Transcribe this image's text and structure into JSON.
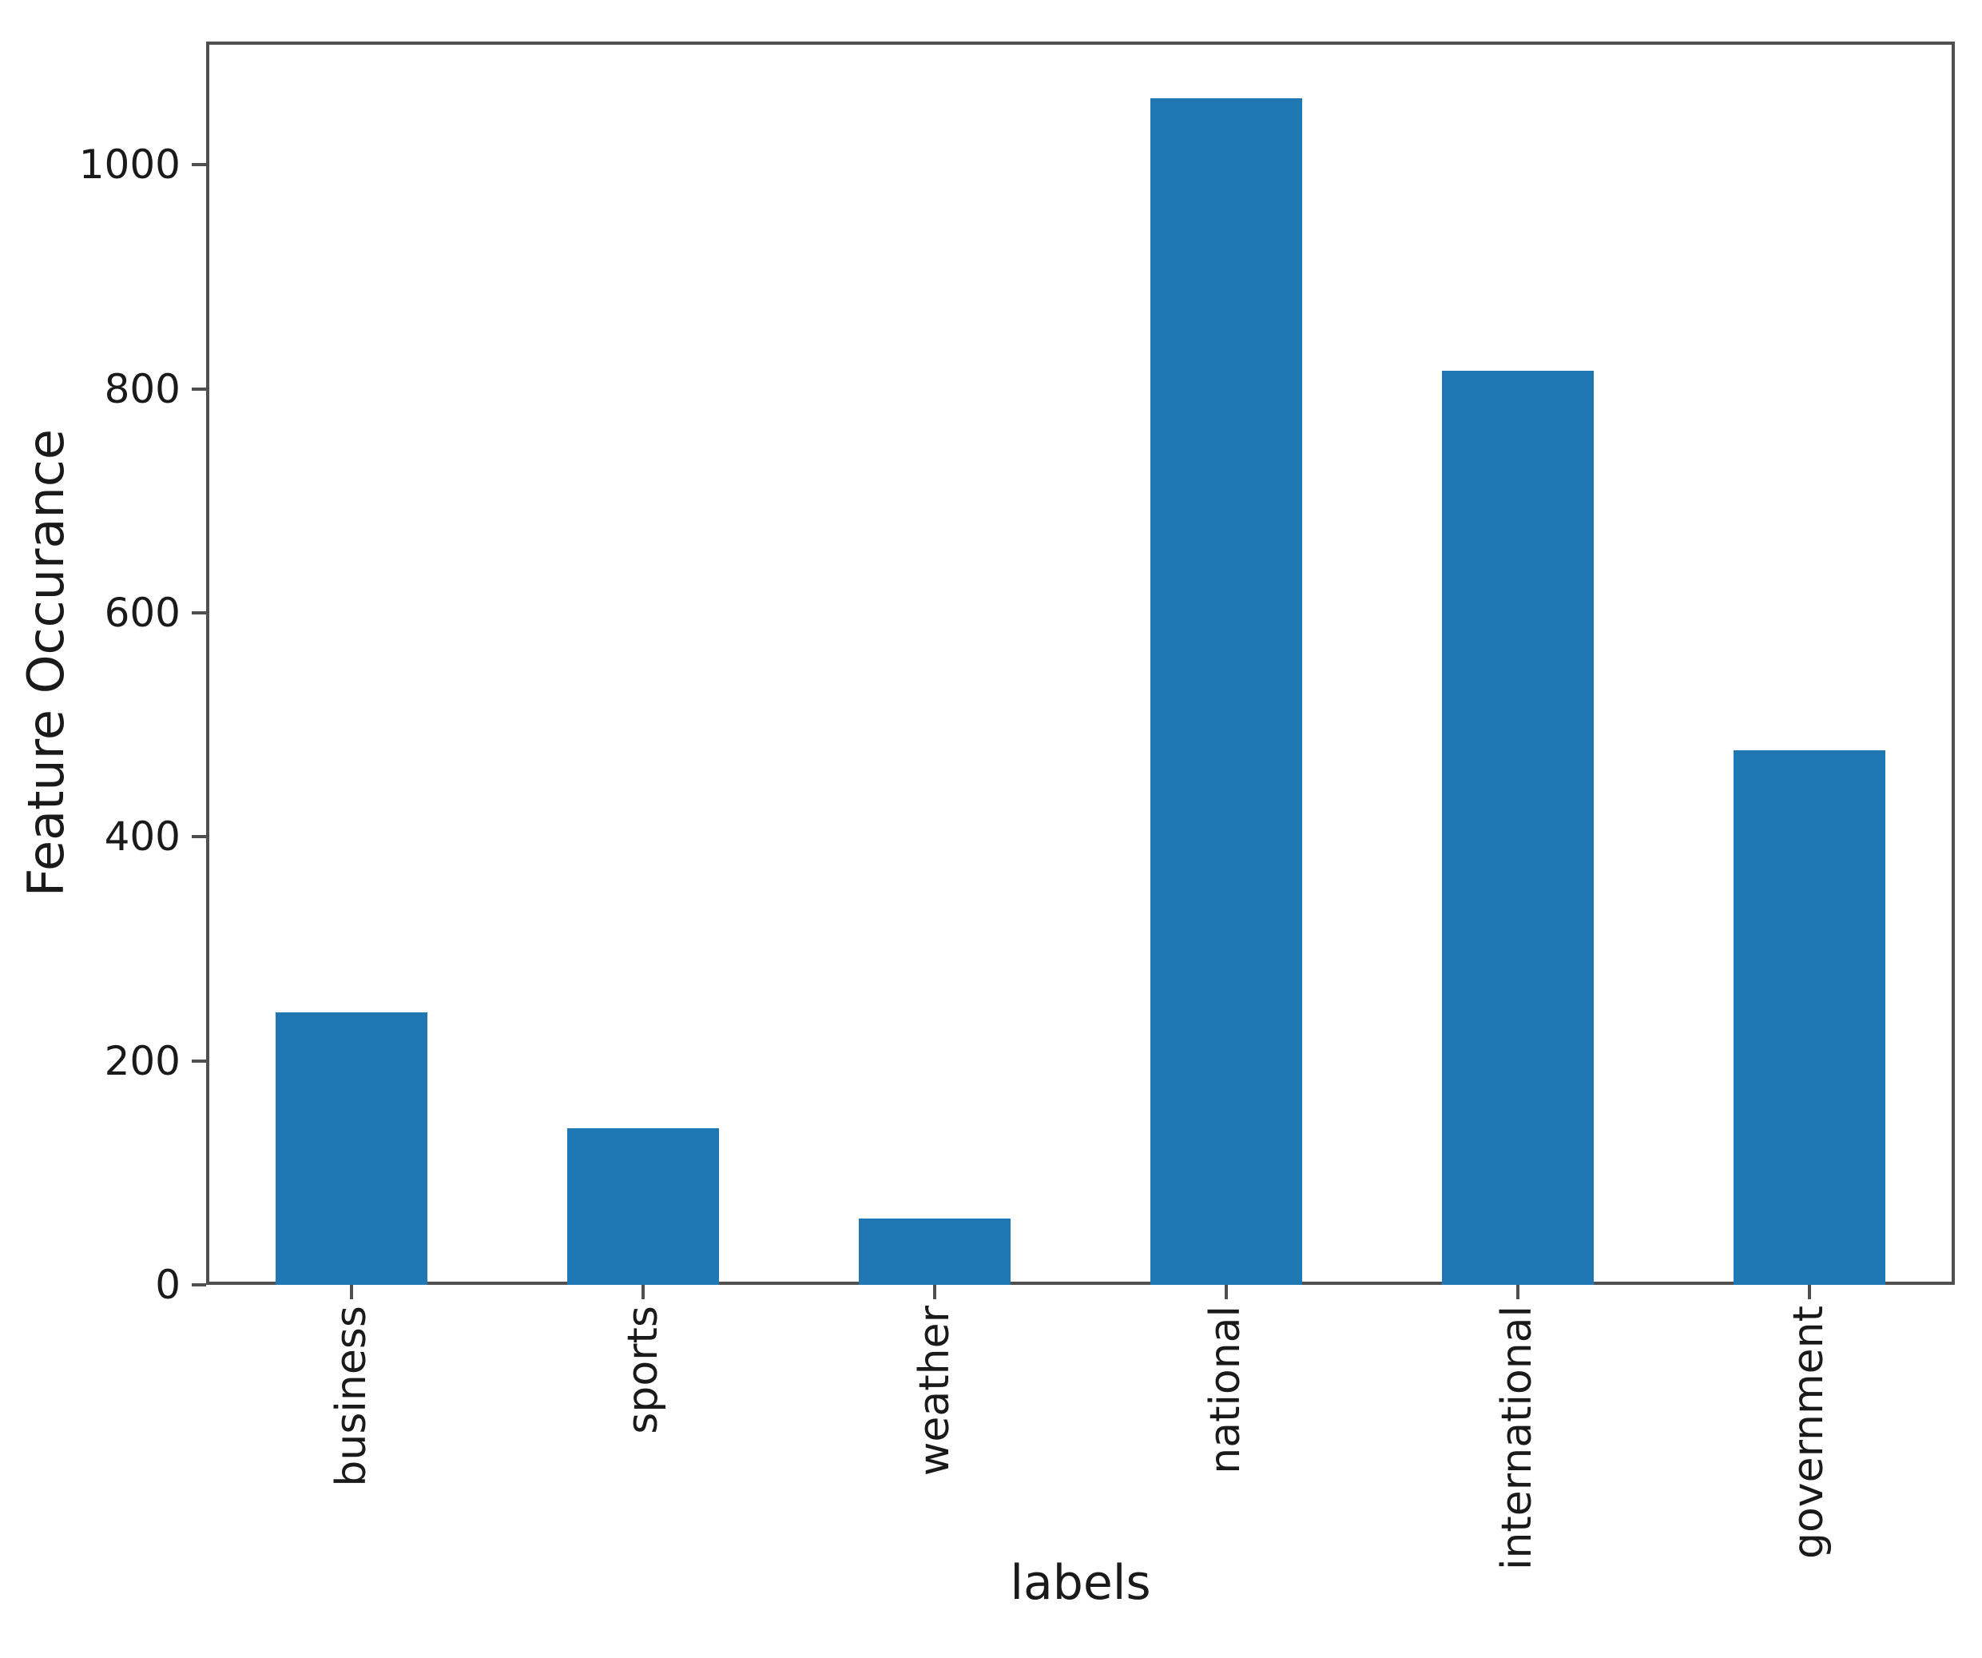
{
  "chart_data": {
    "type": "bar",
    "title": "",
    "xlabel": "labels",
    "ylabel": "Feature Occurance",
    "categories": [
      "business",
      "sports",
      "weather",
      "national",
      "international",
      "government"
    ],
    "values": [
      243,
      140,
      59,
      1059,
      816,
      477
    ],
    "yticks": [
      0,
      200,
      400,
      600,
      800,
      1000
    ],
    "ylim": [
      0,
      1110
    ],
    "bar_color": "#1f77b4",
    "grid": false,
    "legend": "none",
    "x_tick_label_rotation_deg": 90
  }
}
